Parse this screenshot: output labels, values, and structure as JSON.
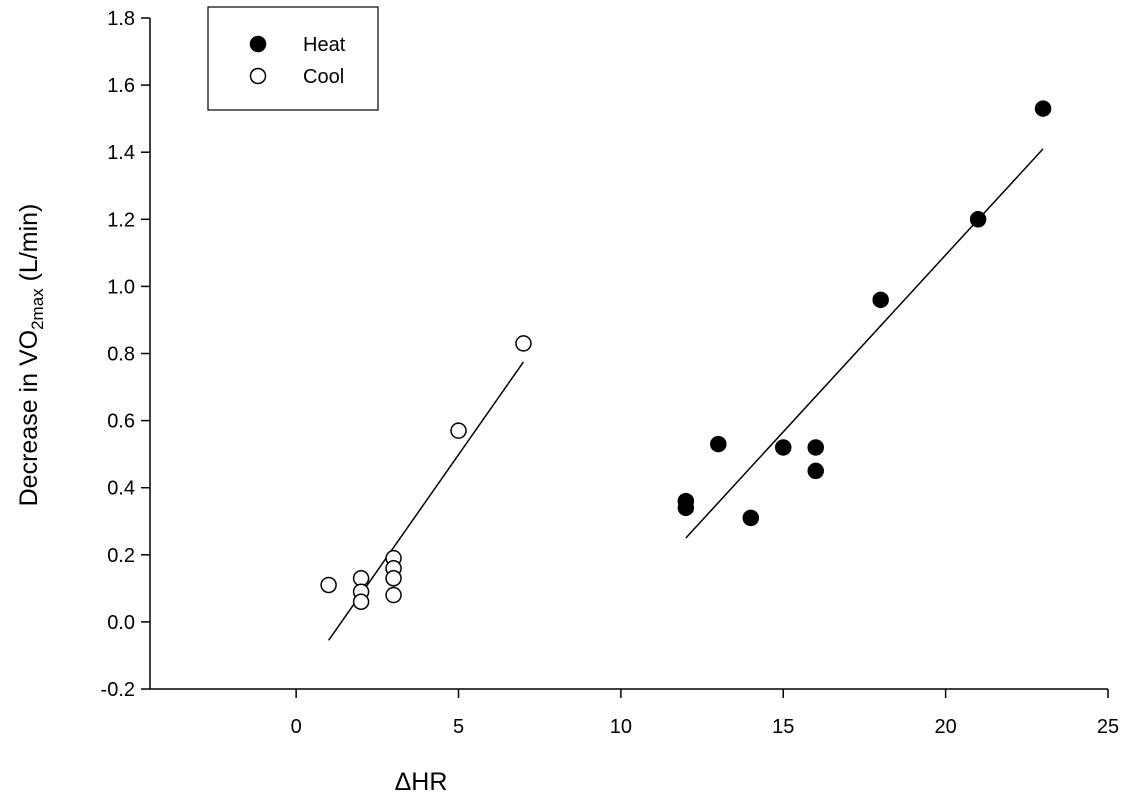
{
  "chart_data": {
    "type": "scatter",
    "title": "",
    "xlabel": "ΔHR",
    "ylabel": {
      "prefix": "Decrease in VO",
      "subscript": "2max",
      "suffix": " (L/min)"
    },
    "xlim": [
      -4.5,
      25
    ],
    "ylim": [
      -0.2,
      1.8
    ],
    "x_ticks": [
      0,
      5,
      10,
      15,
      20,
      25
    ],
    "x_tick_labels": [
      "0",
      "5",
      "10",
      "15",
      "20",
      "25"
    ],
    "y_ticks": [
      -0.2,
      0.0,
      0.2,
      0.4,
      0.6,
      0.8,
      1.0,
      1.2,
      1.4,
      1.6,
      1.8
    ],
    "y_tick_labels": [
      "-0.2",
      "0.0",
      "0.2",
      "0.4",
      "0.6",
      "0.8",
      "1.0",
      "1.2",
      "1.4",
      "1.6",
      "1.8"
    ],
    "grid": false,
    "legend_position": "top-left",
    "series": [
      {
        "name": "Heat",
        "marker": "filled-circle",
        "color": "#000000",
        "points": [
          [
            12,
            0.36
          ],
          [
            12,
            0.34
          ],
          [
            13,
            0.53
          ],
          [
            14,
            0.31
          ],
          [
            15,
            0.52
          ],
          [
            16,
            0.52
          ],
          [
            16,
            0.45
          ],
          [
            18,
            0.96
          ],
          [
            21,
            1.2
          ],
          [
            23,
            1.53
          ]
        ],
        "fit_line": [
          [
            12,
            0.25
          ],
          [
            23,
            1.41
          ]
        ]
      },
      {
        "name": "Cool",
        "marker": "open-circle",
        "color": "#000000",
        "points": [
          [
            1,
            0.11
          ],
          [
            2,
            0.13
          ],
          [
            2,
            0.09
          ],
          [
            2,
            0.06
          ],
          [
            3,
            0.19
          ],
          [
            3,
            0.16
          ],
          [
            3,
            0.13
          ],
          [
            3,
            0.08
          ],
          [
            5,
            0.57
          ],
          [
            7,
            0.83
          ]
        ],
        "fit_line": [
          [
            1,
            -0.055
          ],
          [
            7,
            0.775
          ]
        ]
      }
    ]
  }
}
